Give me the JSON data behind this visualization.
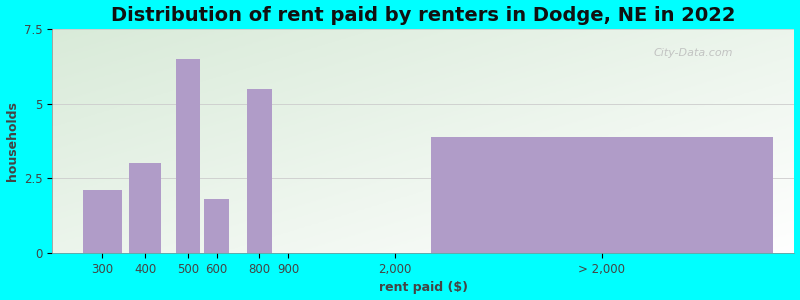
{
  "title": "Distribution of rent paid by renters in Dodge, NE in 2022",
  "xlabel": "rent paid ($)",
  "ylabel": "households",
  "background_color": "#00FFFF",
  "bar_color": "#b09cc8",
  "ylim": [
    0,
    7.5
  ],
  "yticks": [
    0,
    2.5,
    5,
    7.5
  ],
  "bar_labels": [
    "300",
    "400",
    "500",
    "600",
    "800",
    "900",
    "2,000",
    "> 2,000"
  ],
  "bar_values": [
    2.1,
    3.0,
    6.5,
    1.8,
    5.5,
    0.0,
    0.0,
    3.9
  ],
  "title_fontsize": 14,
  "axis_label_fontsize": 9,
  "tick_fontsize": 8.5
}
